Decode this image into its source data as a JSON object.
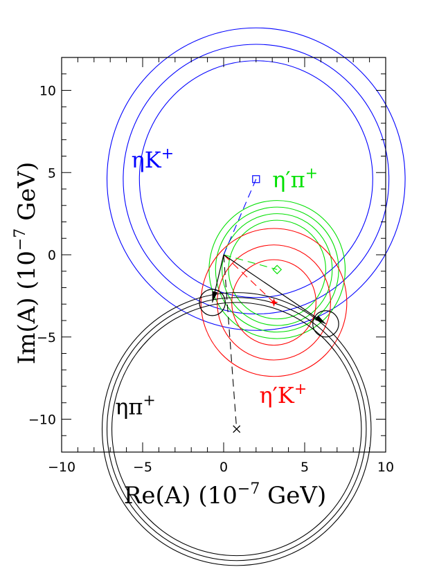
{
  "chart_data": {
    "type": "scatter",
    "title": "",
    "xlabel": {
      "main": "Re(A)  (10",
      "exponent": "−7",
      "unit": " GeV)"
    },
    "ylabel": {
      "main": "Im(A)  (10",
      "exponent": "−7",
      "unit": " GeV)"
    },
    "xlim": [
      -10,
      10
    ],
    "ylim": [
      -12,
      12
    ],
    "x_ticks": [
      -10,
      -5,
      0,
      5,
      10
    ],
    "y_ticks": [
      -10,
      -5,
      0,
      5,
      10
    ],
    "x_tick_labels": [
      "−10",
      "−5",
      "0",
      "5",
      "10"
    ],
    "y_tick_labels": [
      "−10",
      "−5",
      "0",
      "5",
      "10"
    ],
    "grid": false,
    "colors": {
      "etaK": "#0000ff",
      "etaPrimePi": "#00e000",
      "etaPrimeK": "#ff0000",
      "etaPi": "#000000"
    },
    "circle_sets": [
      {
        "key": "etaK",
        "center": [
          2.0,
          4.6
        ],
        "radii": [
          7.2,
          8.2,
          9.2
        ],
        "label": {
          "main": "ηK",
          "sup": "+"
        },
        "label_at": [
          -5.7,
          5.3
        ]
      },
      {
        "key": "etaPrimePi",
        "center": [
          3.3,
          -0.9
        ],
        "radii": [
          3.0,
          3.4,
          3.8,
          4.2
        ],
        "label": {
          "main": "η′π",
          "sup": "+"
        },
        "label_at": [
          3.0,
          4.1
        ]
      },
      {
        "key": "etaPrimeK",
        "center": [
          3.1,
          -2.9
        ],
        "radii": [
          2.6,
          3.5,
          4.5
        ],
        "label": {
          "main": "η′K",
          "sup": "+"
        },
        "label_at": [
          2.2,
          -9.0
        ]
      },
      {
        "key": "etaPi",
        "center": [
          0.8,
          -10.6
        ],
        "radii": [
          7.7,
          8.0,
          8.3
        ],
        "label": {
          "main": "ηπ",
          "sup": "+"
        },
        "label_at": [
          -6.7,
          -9.7
        ]
      }
    ],
    "points": [
      {
        "key": "etaK",
        "marker": "square",
        "x": 2.0,
        "y": 4.6
      },
      {
        "key": "etaPrimePi",
        "marker": "diamond",
        "x": 3.3,
        "y": -0.9
      },
      {
        "key": "etaPrimeK",
        "marker": "star",
        "x": 3.1,
        "y": -2.9
      },
      {
        "key": "etaPi",
        "marker": "cross",
        "x": 0.8,
        "y": -10.6
      }
    ],
    "dashed_lines": [
      {
        "key": "etaK",
        "from": [
          0,
          0
        ],
        "to": [
          2.0,
          4.6
        ]
      },
      {
        "key": "etaPrimePi",
        "from": [
          0,
          0
        ],
        "to": [
          3.3,
          -0.9
        ]
      },
      {
        "key": "etaPrimeK",
        "from": [
          0,
          0
        ],
        "to": [
          3.1,
          -2.9
        ]
      },
      {
        "key": "etaPi",
        "from": [
          0,
          0
        ],
        "to": [
          0.8,
          -10.6
        ]
      }
    ],
    "solutions": [
      {
        "x": -0.7,
        "y": -2.9,
        "circle_radius": 0.8
      },
      {
        "x": 6.3,
        "y": -4.2,
        "circle_radius": 0.8
      }
    ],
    "solid_lines": [
      {
        "from": [
          0,
          0
        ],
        "to": [
          6.3,
          -4.2
        ]
      },
      {
        "from": [
          0,
          0
        ],
        "to": [
          -0.7,
          -2.9
        ]
      }
    ]
  }
}
